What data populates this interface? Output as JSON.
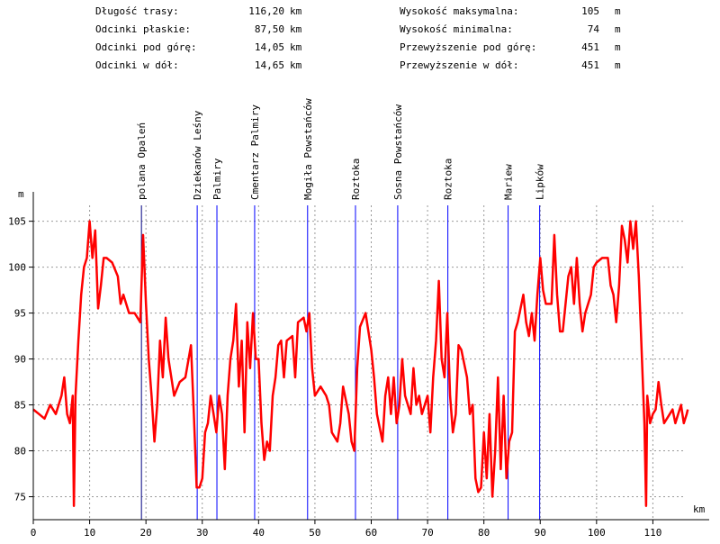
{
  "summary": {
    "left": [
      {
        "label": "Długość trasy:",
        "value": "116,20",
        "unit": "km"
      },
      {
        "label": "Odcinki płaskie:",
        "value": "87,50",
        "unit": "km"
      },
      {
        "label": "Odcinki pod górę:",
        "value": "14,05",
        "unit": "km"
      },
      {
        "label": "Odcinki w dół:",
        "value": "14,65",
        "unit": "km"
      }
    ],
    "right": [
      {
        "label": "Wysokość maksymalna:",
        "value": "105",
        "unit": "m"
      },
      {
        "label": "Wysokość minimalna:",
        "value": "74",
        "unit": "m"
      },
      {
        "label": "Przewyższenie pod górę:",
        "value": "451",
        "unit": "m"
      },
      {
        "label": "Przewyższenie w dół:",
        "value": "451",
        "unit": "m"
      }
    ]
  },
  "chart_data": {
    "type": "line",
    "y_label": "m",
    "x_label": "km",
    "color": "#ff0000",
    "grid": true,
    "xlim": [
      0,
      120
    ],
    "ylim": [
      72.5,
      108.2
    ],
    "xticks": [
      0,
      10,
      20,
      30,
      40,
      50,
      60,
      70,
      80,
      90,
      100,
      110
    ],
    "yticks": [
      75,
      80,
      85,
      90,
      95,
      100,
      105
    ],
    "waypoints": [
      {
        "name": "polana Opaleń",
        "x": 19.2,
        "color": "#000080"
      },
      {
        "name": "Dziekanów Leśny",
        "x": 29.1,
        "color": "#0000ff"
      },
      {
        "name": "Palmiry",
        "x": 32.6,
        "color": "#0000ff"
      },
      {
        "name": "Cmentarz Palmiry",
        "x": 39.3,
        "color": "#0000ff"
      },
      {
        "name": "Mogiła Powstańców",
        "x": 48.7,
        "color": "#0000ff"
      },
      {
        "name": "Roztoka",
        "x": 57.2,
        "color": "#0000ff"
      },
      {
        "name": "Sosna Powstańców",
        "x": 64.7,
        "color": "#0000ff"
      },
      {
        "name": "Roztoka",
        "x": 73.6,
        "color": "#0000ff"
      },
      {
        "name": "Mariew",
        "x": 84.3,
        "color": "#0000ff"
      },
      {
        "name": "Lipków",
        "x": 89.9,
        "color": "#0000ff"
      }
    ],
    "x": [
      0,
      1,
      2,
      3,
      4,
      5,
      5.5,
      6,
      6.5,
      7,
      7.2,
      7.5,
      8,
      8.5,
      9,
      9.5,
      10,
      10.5,
      11,
      11.5,
      12,
      12.5,
      13,
      14,
      15,
      15.5,
      16,
      17,
      18,
      19,
      19.5,
      20,
      20.5,
      21,
      21.5,
      22,
      22.5,
      23,
      23.5,
      24,
      25,
      26,
      27,
      28,
      28.5,
      29,
      29.5,
      30,
      30.5,
      31,
      31.5,
      32,
      32.5,
      33,
      33.5,
      34,
      34.5,
      35,
      35.5,
      36,
      36.5,
      37,
      37.5,
      38,
      38.5,
      39,
      39.5,
      40,
      40.5,
      41,
      41.5,
      42,
      42.5,
      43,
      43.5,
      44,
      44.5,
      45,
      46,
      46.5,
      47,
      48,
      48.5,
      49,
      49.5,
      50,
      51,
      52,
      52.5,
      53,
      54,
      54.5,
      55,
      56,
      56.5,
      57,
      57.5,
      58,
      59,
      60,
      60.5,
      61,
      62,
      62.5,
      63,
      63.5,
      64,
      64.5,
      65,
      65.5,
      66,
      67,
      67.5,
      68,
      68.5,
      69,
      70,
      70.5,
      71,
      71.5,
      72,
      72.5,
      73,
      73.5,
      74,
      74.5,
      75,
      75.5,
      76,
      77,
      77.5,
      78,
      78.5,
      79,
      79.5,
      80,
      80.5,
      81,
      81.5,
      82,
      82.5,
      83,
      83.5,
      84,
      84.5,
      85,
      85.5,
      86,
      87,
      87.5,
      88,
      88.5,
      89,
      89.5,
      90,
      90.5,
      91,
      92,
      92.5,
      93,
      93.5,
      94,
      94.5,
      95,
      95.5,
      96,
      96.5,
      97,
      97.5,
      98,
      99,
      99.5,
      100,
      101,
      102,
      102.5,
      103,
      103.5,
      104,
      104.5,
      105,
      105.5,
      106,
      106.5,
      107,
      107.5,
      108,
      108.5,
      108.8,
      109,
      109.5,
      110,
      110.5,
      111,
      111.5,
      112,
      113,
      113.5,
      114,
      115,
      115.5,
      116,
      116.2
    ],
    "values": [
      84.5,
      84,
      83.5,
      85,
      84,
      86,
      88,
      84,
      83,
      86,
      74,
      86,
      92,
      97,
      100,
      101,
      105,
      101,
      104,
      95.5,
      98,
      101,
      101,
      100.5,
      99,
      96,
      97,
      95,
      95,
      94,
      103.5,
      96,
      90,
      86,
      81,
      85,
      92,
      88,
      94.5,
      90,
      86,
      87.5,
      88,
      91.5,
      84,
      76,
      76,
      77,
      82,
      83,
      86,
      84,
      82,
      86,
      84,
      78,
      86,
      90,
      92,
      96,
      87,
      92,
      82,
      94,
      89,
      95,
      90,
      90,
      83,
      79,
      81,
      80,
      86,
      88,
      91.5,
      92,
      88,
      92,
      92.5,
      88,
      94,
      94.5,
      93,
      95,
      89,
      86,
      87,
      86,
      85,
      82,
      81,
      83,
      87,
      84,
      81,
      80,
      89,
      93.5,
      95,
      91,
      88,
      84,
      81,
      86,
      88,
      84,
      88,
      83,
      85,
      90,
      86,
      84,
      89,
      85,
      86,
      84,
      86,
      82,
      88,
      92,
      98.5,
      90,
      88,
      95,
      86,
      82,
      84,
      91.5,
      91,
      88,
      84,
      85,
      77,
      75.5,
      76,
      82,
      77,
      84,
      75,
      80,
      88,
      78,
      86,
      77,
      81,
      82,
      93,
      94,
      97,
      94,
      92.5,
      95,
      92,
      97,
      101,
      97.5,
      96,
      96,
      103.5,
      97,
      93,
      93,
      96,
      99,
      100,
      96,
      101,
      96,
      93,
      95,
      97,
      100,
      100.5,
      101,
      101,
      98,
      97,
      94,
      98,
      104.5,
      103,
      100.5,
      105,
      102,
      105,
      99,
      91,
      83,
      74,
      86,
      83,
      84,
      84.5,
      87.5,
      85,
      83,
      84,
      84.5,
      83,
      85,
      83,
      84,
      84.5
    ]
  }
}
